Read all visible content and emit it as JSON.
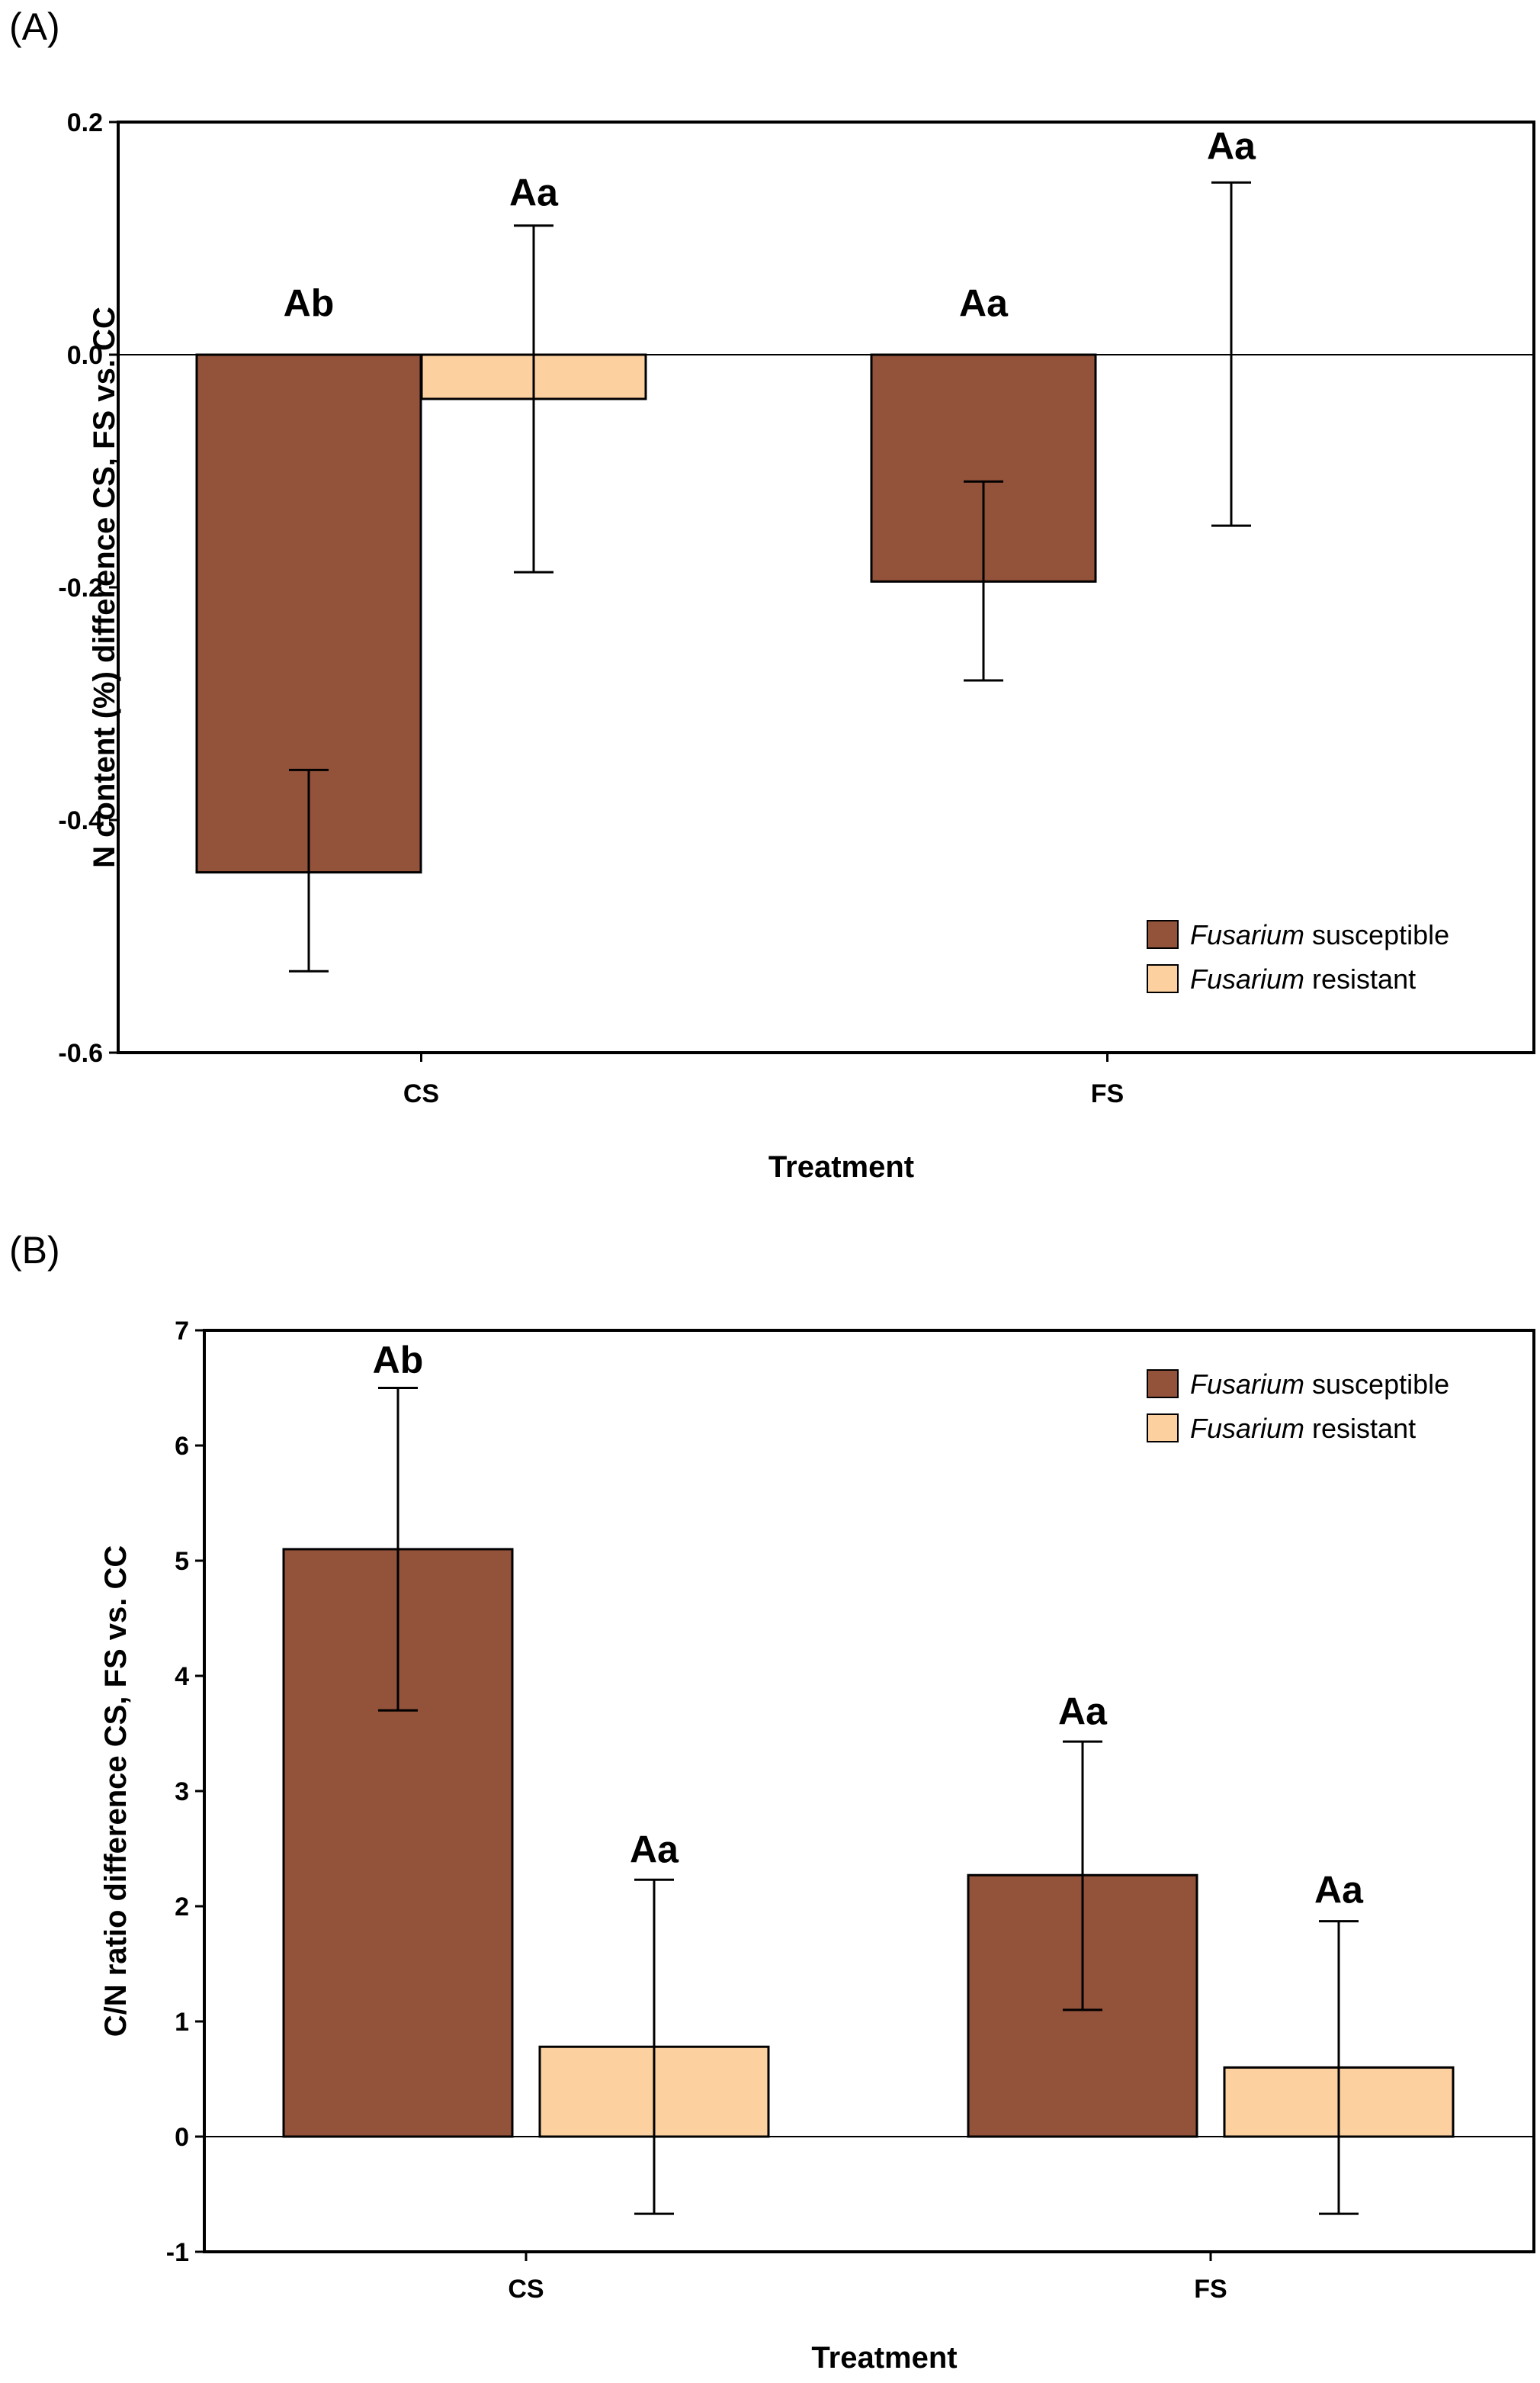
{
  "panels": {
    "a_label": "(A)",
    "b_label": "(B)"
  },
  "colors": {
    "susceptible": "#93523A",
    "resistant": "#FDD09F",
    "axis": "#000000"
  },
  "chart_data": [
    {
      "type": "bar",
      "panel": "(A)",
      "title": "",
      "xlabel": "Treatment",
      "ylabel": "N content (%) difference CS, FS vs. CC",
      "categories": [
        "CS",
        "FS"
      ],
      "ylim": [
        -0.6,
        0.2
      ],
      "yticks": [
        0.2,
        0.0,
        -0.2,
        -0.4,
        -0.6
      ],
      "ytick_labels": [
        "0.2",
        "0.0",
        "-0.2",
        "-0.4",
        "-0.6"
      ],
      "legend_position": "bottom-right",
      "series": [
        {
          "name": "Fusarium susceptible",
          "name_italic": "Fusarium",
          "name_rest": " susceptible",
          "values": [
            -0.445,
            -0.195
          ],
          "error_low": [
            -0.53,
            -0.28
          ],
          "error_high": [
            -0.357,
            -0.109
          ],
          "labels": [
            "Ab",
            "Aa"
          ],
          "label_y": [
            0.045,
            0.045
          ]
        },
        {
          "name": "Fusarium resistant",
          "name_italic": "Fusarium",
          "name_rest": " resistant",
          "values": [
            -0.038,
            0.0
          ],
          "error_low": [
            -0.187,
            -0.147
          ],
          "error_high": [
            0.111,
            0.148
          ],
          "labels": [
            "Aa",
            "Aa"
          ],
          "label_y": [
            0.14,
            0.18
          ]
        }
      ]
    },
    {
      "type": "bar",
      "panel": "(B)",
      "title": "",
      "xlabel": "Treatment",
      "ylabel": "C/N ratio difference CS, FS vs. CC",
      "categories": [
        "CS",
        "FS"
      ],
      "ylim": [
        -1,
        7
      ],
      "yticks": [
        7,
        6,
        5,
        4,
        3,
        2,
        1,
        0,
        -1
      ],
      "ytick_labels": [
        "7",
        "6",
        "5",
        "4",
        "3",
        "2",
        "1",
        "0",
        "-1"
      ],
      "legend_position": "top-right",
      "series": [
        {
          "name": "Fusarium susceptible",
          "name_italic": "Fusarium",
          "name_rest": " susceptible",
          "values": [
            5.1,
            2.27
          ],
          "error_low": [
            3.7,
            1.1
          ],
          "error_high": [
            6.5,
            3.43
          ],
          "labels": [
            "Ab",
            "Aa"
          ],
          "label_y": [
            6.75,
            3.7
          ]
        },
        {
          "name": "Fusarium resistant",
          "name_italic": "Fusarium",
          "name_rest": " resistant",
          "values": [
            0.78,
            0.6
          ],
          "error_low": [
            -0.67,
            -0.67
          ],
          "error_high": [
            2.23,
            1.87
          ],
          "labels": [
            "Aa",
            "Aa"
          ],
          "label_y": [
            2.5,
            2.15
          ]
        }
      ]
    }
  ]
}
